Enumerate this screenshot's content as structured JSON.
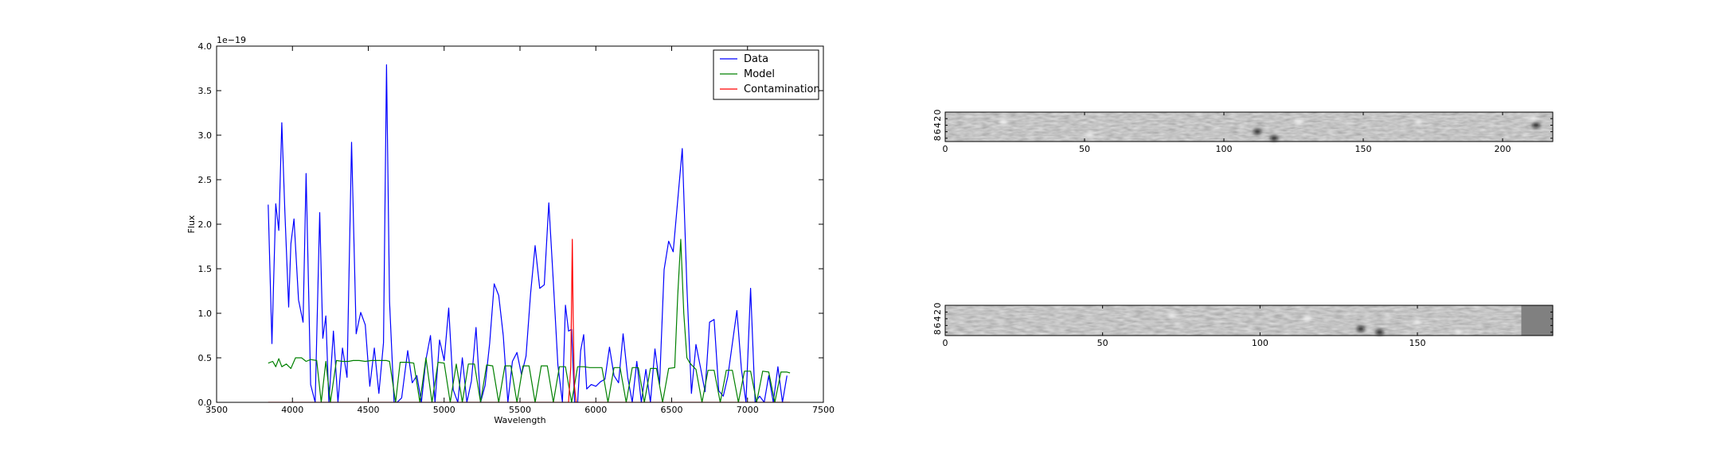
{
  "chart_data": [
    {
      "type": "line",
      "xlabel": "Wavelength",
      "ylabel": "Flux",
      "y_offset_label": "1e−19",
      "xlim": [
        3500,
        7500
      ],
      "ylim": [
        0.0,
        4.0
      ],
      "xticks": [
        3500,
        4000,
        4500,
        5000,
        5500,
        6000,
        6500,
        7000,
        7500
      ],
      "yticks": [
        0.0,
        0.5,
        1.0,
        1.5,
        2.0,
        2.5,
        3.0,
        3.5,
        4.0
      ],
      "xtick_labels": [
        "3500",
        "4000",
        "4500",
        "5000",
        "5500",
        "6000",
        "6500",
        "7000",
        "7500"
      ],
      "ytick_labels": [
        "0.0",
        "0.5",
        "1.0",
        "1.5",
        "2.0",
        "2.5",
        "3.0",
        "3.5",
        "4.0"
      ],
      "legend_position": "top-right",
      "grid": false,
      "series": [
        {
          "name": "Data",
          "color": "#0000ff",
          "x": [
            3840,
            3865,
            3890,
            3910,
            3930,
            3950,
            3975,
            3990,
            4010,
            4040,
            4070,
            4090,
            4120,
            4150,
            4180,
            4200,
            4220,
            4240,
            4270,
            4300,
            4330,
            4360,
            4390,
            4420,
            4450,
            4480,
            4510,
            4540,
            4570,
            4600,
            4620,
            4640,
            4670,
            4690,
            4720,
            4760,
            4790,
            4820,
            4850,
            4880,
            4910,
            4940,
            4970,
            5000,
            5030,
            5060,
            5090,
            5120,
            5150,
            5180,
            5210,
            5240,
            5270,
            5300,
            5330,
            5360,
            5390,
            5420,
            5450,
            5480,
            5510,
            5540,
            5570,
            5600,
            5630,
            5660,
            5690,
            5720,
            5750,
            5780,
            5800,
            5820,
            5840,
            5860,
            5880,
            5900,
            5920,
            5940,
            5970,
            6000,
            6030,
            6060,
            6090,
            6120,
            6150,
            6180,
            6210,
            6240,
            6270,
            6300,
            6330,
            6360,
            6390,
            6420,
            6450,
            6480,
            6510,
            6540,
            6570,
            6600,
            6630,
            6660,
            6690,
            6720,
            6750,
            6780,
            6810,
            6840,
            6870,
            6900,
            6930,
            6960,
            6990,
            7020,
            7050,
            7080,
            7110,
            7140,
            7170,
            7200,
            7230,
            7260
          ],
          "y": [
            2.22,
            0.66,
            2.23,
            1.93,
            3.14,
            2.15,
            1.07,
            1.78,
            2.06,
            1.15,
            0.9,
            2.57,
            0.2,
            0.0,
            2.13,
            0.72,
            0.97,
            0.0,
            0.8,
            0.0,
            0.61,
            0.28,
            2.92,
            0.77,
            1.01,
            0.87,
            0.18,
            0.61,
            0.1,
            0.67,
            3.79,
            1.13,
            0.0,
            0.0,
            0.05,
            0.58,
            0.22,
            0.3,
            0.0,
            0.48,
            0.75,
            0.0,
            0.7,
            0.47,
            1.06,
            0.14,
            0.0,
            0.5,
            0.0,
            0.24,
            0.84,
            0.0,
            0.19,
            0.66,
            1.33,
            1.2,
            0.75,
            0.0,
            0.46,
            0.56,
            0.31,
            0.52,
            1.22,
            1.76,
            1.28,
            1.32,
            2.24,
            1.35,
            0.42,
            0.0,
            1.09,
            0.8,
            0.82,
            0.0,
            0.0,
            0.58,
            0.76,
            0.15,
            0.2,
            0.18,
            0.23,
            0.26,
            0.62,
            0.3,
            0.22,
            0.77,
            0.28,
            0.0,
            0.46,
            0.0,
            0.37,
            0.0,
            0.6,
            0.2,
            1.49,
            1.81,
            1.69,
            2.27,
            2.85,
            1.3,
            0.1,
            0.65,
            0.39,
            0.12,
            0.9,
            0.93,
            0.13,
            0.07,
            0.29,
            0.66,
            1.03,
            0.37,
            0.0,
            1.28,
            0.0,
            0.07,
            0.0,
            0.3,
            0.0,
            0.4,
            0.0,
            0.3
          ],
          "x_note": ""
        },
        {
          "name": "Model",
          "color": "#008000",
          "x": [
            3840,
            3870,
            3890,
            3910,
            3930,
            3960,
            3990,
            4020,
            4060,
            4090,
            4120,
            4160,
            4190,
            4220,
            4250,
            4290,
            4330,
            4370,
            4400,
            4440,
            4480,
            4520,
            4560,
            4600,
            4620,
            4640,
            4680,
            4710,
            4760,
            4800,
            4840,
            4880,
            4920,
            4960,
            5000,
            5040,
            5080,
            5120,
            5160,
            5200,
            5240,
            5280,
            5320,
            5360,
            5400,
            5440,
            5480,
            5520,
            5560,
            5600,
            5640,
            5680,
            5720,
            5760,
            5800,
            5840,
            5880,
            5920,
            5960,
            6000,
            6040,
            6080,
            6120,
            6160,
            6200,
            6240,
            6280,
            6320,
            6360,
            6400,
            6440,
            6480,
            6520,
            6540,
            6560,
            6580,
            6600,
            6620,
            6660,
            6700,
            6740,
            6780,
            6820,
            6860,
            6900,
            6940,
            6980,
            7020,
            7060,
            7100,
            7140,
            7180,
            7220,
            7260,
            7280
          ],
          "y": [
            0.44,
            0.46,
            0.4,
            0.49,
            0.4,
            0.43,
            0.38,
            0.5,
            0.5,
            0.46,
            0.48,
            0.47,
            0.0,
            0.46,
            0.0,
            0.47,
            0.46,
            0.46,
            0.47,
            0.47,
            0.46,
            0.47,
            0.47,
            0.47,
            0.47,
            0.46,
            0.0,
            0.45,
            0.45,
            0.44,
            0.0,
            0.5,
            0.0,
            0.45,
            0.44,
            0.0,
            0.43,
            0.0,
            0.43,
            0.43,
            0.0,
            0.42,
            0.41,
            0.0,
            0.41,
            0.41,
            0.0,
            0.41,
            0.41,
            0.0,
            0.41,
            0.41,
            0.0,
            0.4,
            0.4,
            0.0,
            0.4,
            0.4,
            0.39,
            0.39,
            0.39,
            0.0,
            0.39,
            0.39,
            0.0,
            0.39,
            0.39,
            0.0,
            0.38,
            0.38,
            0.0,
            0.38,
            0.39,
            1.2,
            1.83,
            1.0,
            0.5,
            0.44,
            0.37,
            0.0,
            0.36,
            0.36,
            0.0,
            0.36,
            0.36,
            0.0,
            0.35,
            0.35,
            0.0,
            0.35,
            0.34,
            0.0,
            0.34,
            0.34,
            0.33
          ],
          "x_note": ""
        },
        {
          "name": "Contamination",
          "color": "#ff0000",
          "x": [
            3840,
            5820,
            5835,
            5845,
            5850,
            5858,
            5870,
            7280
          ],
          "y": [
            0.0,
            0.0,
            0.4,
            1.83,
            1.0,
            0.2,
            0.0,
            0.0
          ]
        }
      ]
    },
    {
      "type": "heatmap",
      "description_id": "2D spectrum image 1",
      "colormap": "gray",
      "xlim": [
        0,
        218
      ],
      "ylim": [
        0,
        9
      ],
      "xticks": [
        0,
        50,
        100,
        150,
        200
      ],
      "xtick_labels": [
        "0",
        "50",
        "100",
        "150",
        "200"
      ],
      "yticks": [
        0,
        2,
        4,
        6,
        8
      ],
      "ytick_labels": [
        "0",
        "2",
        "4",
        "6",
        "8"
      ],
      "features": [
        {
          "x": 21,
          "y": 3,
          "shade": "bright"
        },
        {
          "x": 52,
          "y": 7,
          "shade": "bright"
        },
        {
          "x": 112,
          "y": 6,
          "shade": "dark"
        },
        {
          "x": 118,
          "y": 8,
          "shade": "dark"
        },
        {
          "x": 127,
          "y": 3,
          "shade": "bright"
        },
        {
          "x": 170,
          "y": 3,
          "shade": "bright"
        },
        {
          "x": 212,
          "y": 4,
          "shade": "dark"
        },
        {
          "x": 211,
          "y": 2,
          "shade": "bright"
        }
      ]
    },
    {
      "type": "heatmap",
      "description_id": "2D spectrum image 2",
      "colormap": "gray",
      "xlim": [
        0,
        193
      ],
      "ylim": [
        0,
        9
      ],
      "xticks": [
        0,
        50,
        100,
        150
      ],
      "xtick_labels": [
        "0",
        "50",
        "100",
        "150"
      ],
      "yticks": [
        0,
        2,
        4,
        6,
        8
      ],
      "ytick_labels": [
        "0",
        "2",
        "4",
        "6",
        "8"
      ],
      "features": [
        {
          "x": 72,
          "y": 3,
          "shade": "bright"
        },
        {
          "x": 115,
          "y": 4,
          "shade": "bright"
        },
        {
          "x": 132,
          "y": 7,
          "shade": "dark"
        },
        {
          "x": 138,
          "y": 8,
          "shade": "dark"
        },
        {
          "x": 150,
          "y": 5,
          "shade": "bright"
        },
        {
          "x": 163,
          "y": 8,
          "shade": "bright"
        }
      ],
      "masked_from_x": 183
    }
  ]
}
